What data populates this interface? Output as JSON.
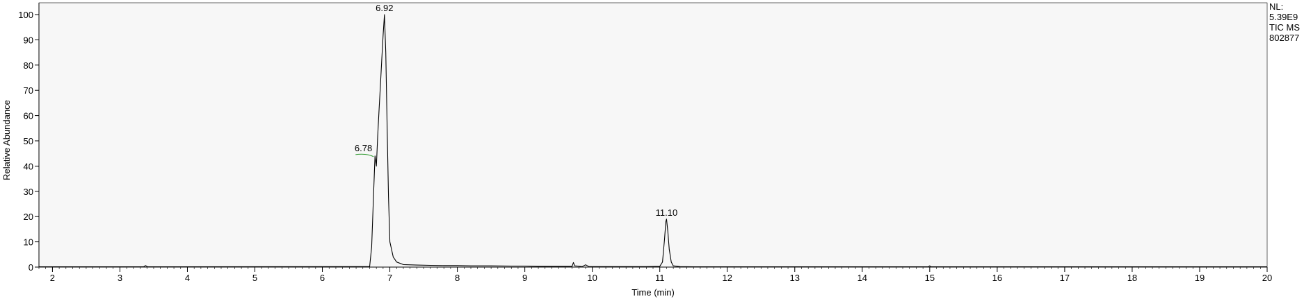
{
  "chart_data": {
    "type": "line",
    "title": "",
    "xlabel": "Time (min)",
    "ylabel": "Relative Abundance",
    "xlim": [
      1.8,
      20.0
    ],
    "ylim": [
      0,
      100
    ],
    "x_ticks": [
      2,
      3,
      4,
      5,
      6,
      7,
      8,
      9,
      10,
      11,
      12,
      13,
      14,
      15,
      16,
      17,
      18,
      19,
      20
    ],
    "y_ticks": [
      0,
      10,
      20,
      30,
      40,
      50,
      60,
      70,
      80,
      90,
      100
    ],
    "grid": false,
    "legend": "none",
    "line_color": "#000000",
    "annotations": [
      {
        "text": "6.92",
        "x": 6.92,
        "y": 100
      },
      {
        "text": "6.78",
        "x": 6.78,
        "y": 44
      },
      {
        "text": "11.10",
        "x": 11.1,
        "y": 19
      }
    ],
    "series": [
      {
        "x": [
          1.8,
          3.35,
          3.38,
          3.41,
          6.7,
          6.73,
          6.76,
          6.78,
          6.8,
          6.82,
          6.84,
          6.86,
          6.88,
          6.9,
          6.92,
          6.94,
          6.96,
          6.98,
          7.0,
          7.05,
          7.1,
          7.2,
          7.4,
          7.6,
          7.8,
          8.0,
          8.2,
          8.5,
          8.8,
          9.0,
          9.2,
          9.5,
          9.7,
          9.72,
          9.74,
          9.78,
          9.85,
          9.9,
          9.95,
          10.0,
          10.2,
          10.5,
          10.8,
          11.0,
          11.04,
          11.07,
          11.09,
          11.1,
          11.12,
          11.14,
          11.17,
          11.2,
          11.3,
          11.5,
          12.0,
          13.0,
          14.0,
          14.98,
          15.0,
          15.02,
          16.0,
          17.0,
          18.0,
          19.0,
          20.0
        ],
        "y": [
          0.1,
          0.1,
          0.6,
          0.1,
          0.2,
          8.0,
          30.0,
          44.0,
          40.0,
          52.0,
          62.0,
          72.0,
          82.0,
          92.0,
          100.0,
          85.0,
          55.0,
          28.0,
          10.0,
          4.0,
          2.0,
          1.0,
          0.8,
          0.7,
          0.6,
          0.6,
          0.5,
          0.5,
          0.4,
          0.4,
          0.3,
          0.3,
          0.3,
          1.8,
          0.5,
          0.4,
          0.2,
          0.9,
          0.2,
          0.2,
          0.2,
          0.2,
          0.2,
          0.3,
          2.0,
          11.0,
          18.0,
          19.0,
          14.0,
          7.0,
          2.0,
          0.5,
          0.2,
          0.1,
          0.1,
          0.1,
          0.1,
          0.1,
          0.5,
          0.1,
          0.1,
          0.1,
          0.1,
          0.1,
          0.1
        ]
      }
    ]
  },
  "side_info": {
    "line1": "NL:",
    "line2": "5.39E9",
    "line3": "TIC  MS",
    "line4": "802877"
  }
}
